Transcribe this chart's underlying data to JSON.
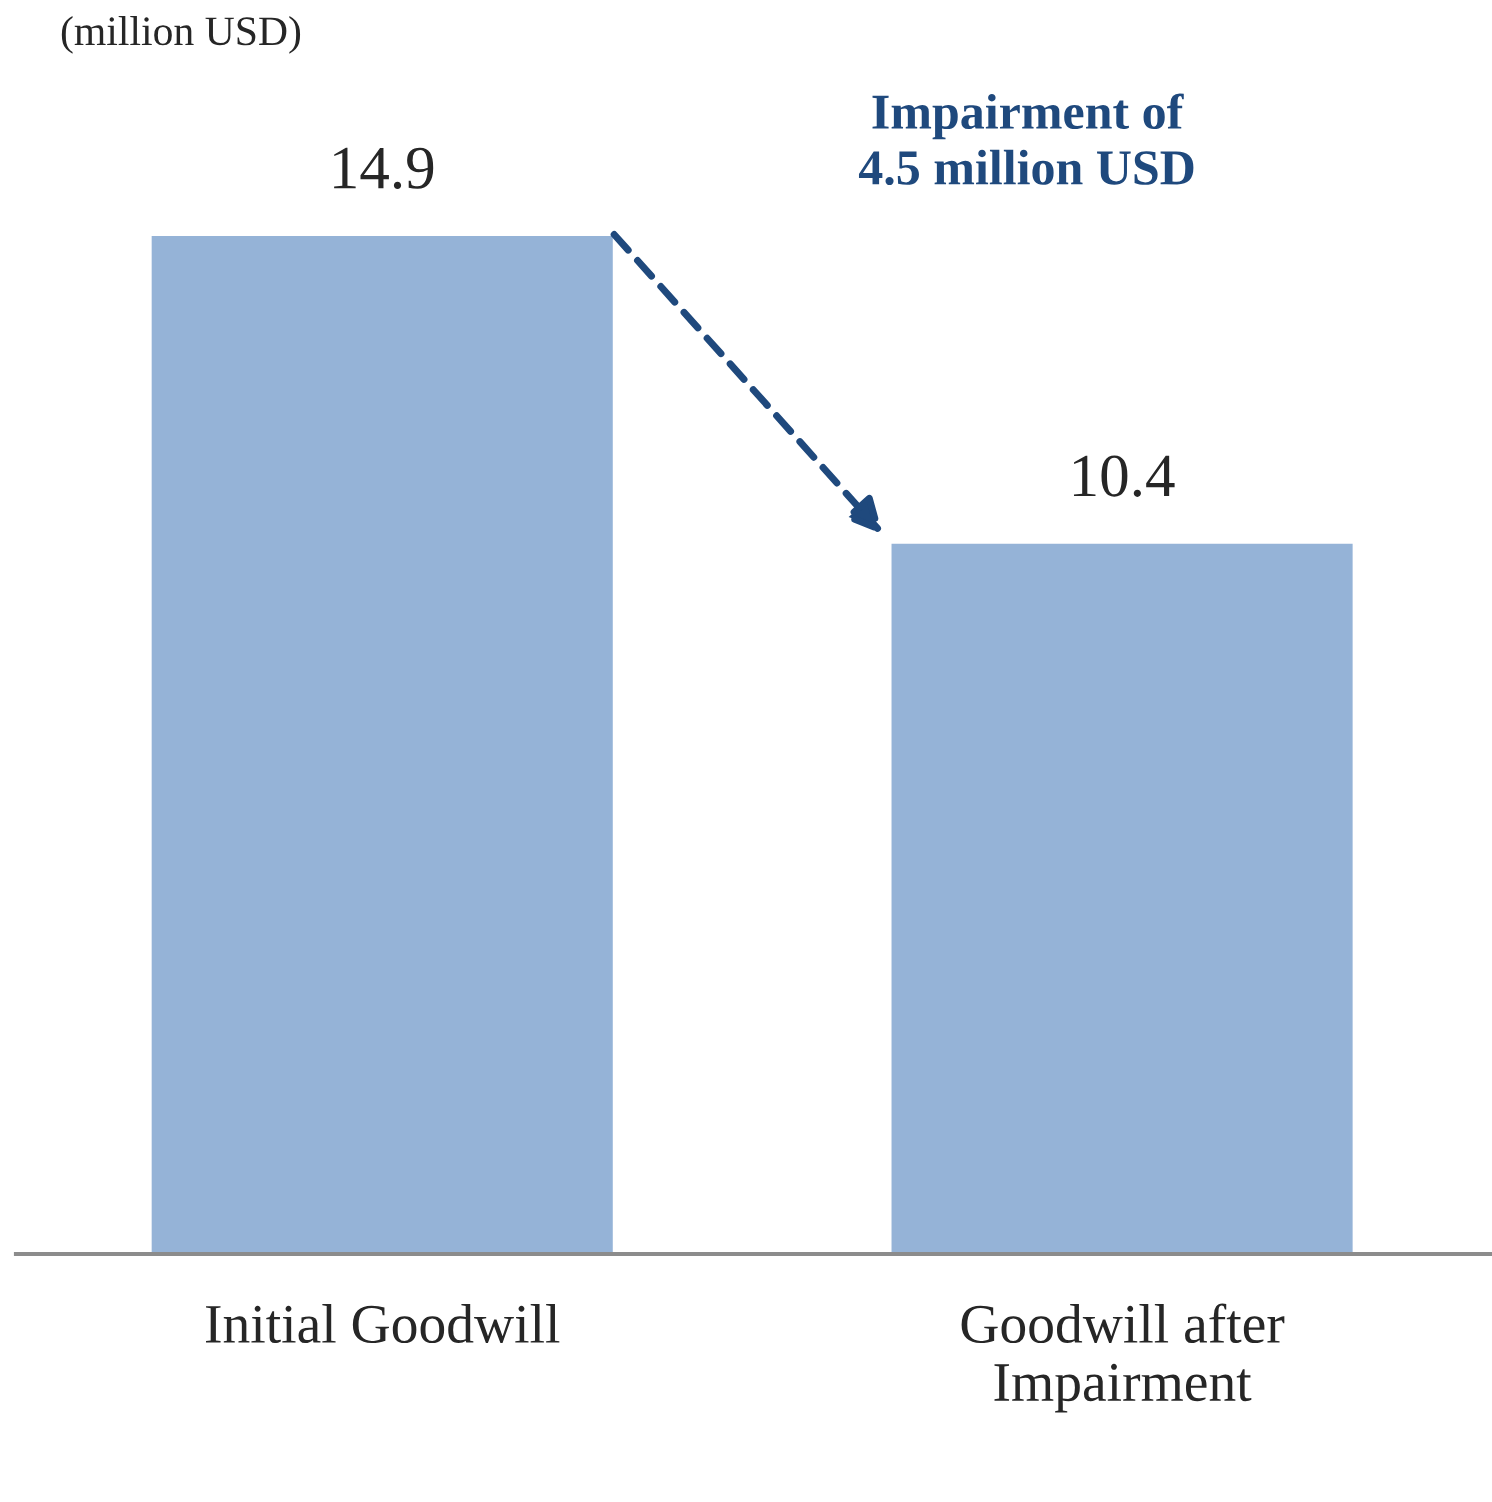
{
  "chart_data": {
    "type": "bar",
    "ylabel": "(million USD)",
    "categories": [
      "Initial Goodwill",
      "Goodwill after\nImpairment"
    ],
    "values": [
      14.9,
      10.4
    ],
    "color": "#95b3d7",
    "data_labels": true,
    "annotations": [
      "Impairment of\n4.5 million USD"
    ],
    "grid": false,
    "legend": false
  }
}
